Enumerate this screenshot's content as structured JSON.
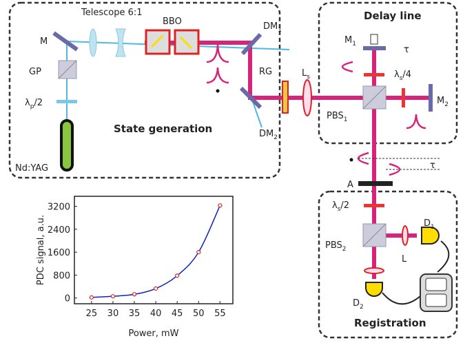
{
  "labels": {
    "telescope": "Telescope 6:1",
    "bbo": "BBO",
    "m": "M",
    "gp": "GP",
    "lp2": {
      "text": "λ",
      "sub": "p",
      "after": "/2"
    },
    "ndyag": "Nd:YAG",
    "state": "State generation",
    "dm1": {
      "text": "DM",
      "sub": "1"
    },
    "dm2": {
      "text": "DM",
      "sub": "2"
    },
    "rg": "RG",
    "ls": {
      "text": "L",
      "sub": "s"
    },
    "delay": "Delay line",
    "m1": {
      "text": "M",
      "sub": "1"
    },
    "tau": "τ",
    "ls4": {
      "text": "λ",
      "sub": "s",
      "after": "/4"
    },
    "m2": {
      "text": "M",
      "sub": "2"
    },
    "pbs1": {
      "text": "PBS",
      "sub": "1"
    },
    "a": "A",
    "ls2": {
      "text": "λ",
      "sub": "s",
      "after": "/2"
    },
    "pbs2": {
      "text": "PBS",
      "sub": "2"
    },
    "l": "L",
    "d1": {
      "text": "D",
      "sub": "1"
    },
    "d2": {
      "text": "D",
      "sub": "2"
    },
    "registration": "Registration"
  },
  "chart_data": {
    "type": "line",
    "x_label": "Power, mW",
    "y_label": "PDC signal, a.u.",
    "x": [
      25,
      30,
      35,
      40,
      45,
      50,
      55
    ],
    "values": [
      20,
      60,
      130,
      330,
      780,
      1600,
      3230
    ],
    "color": "#1020c0",
    "marker_color": "#e02020",
    "xlim": [
      21,
      58
    ],
    "xticks": [
      25,
      30,
      35,
      40,
      45,
      50,
      55
    ],
    "ylim": [
      -200,
      3550
    ],
    "yticks": [
      0,
      800,
      1600,
      2400,
      3200
    ]
  }
}
